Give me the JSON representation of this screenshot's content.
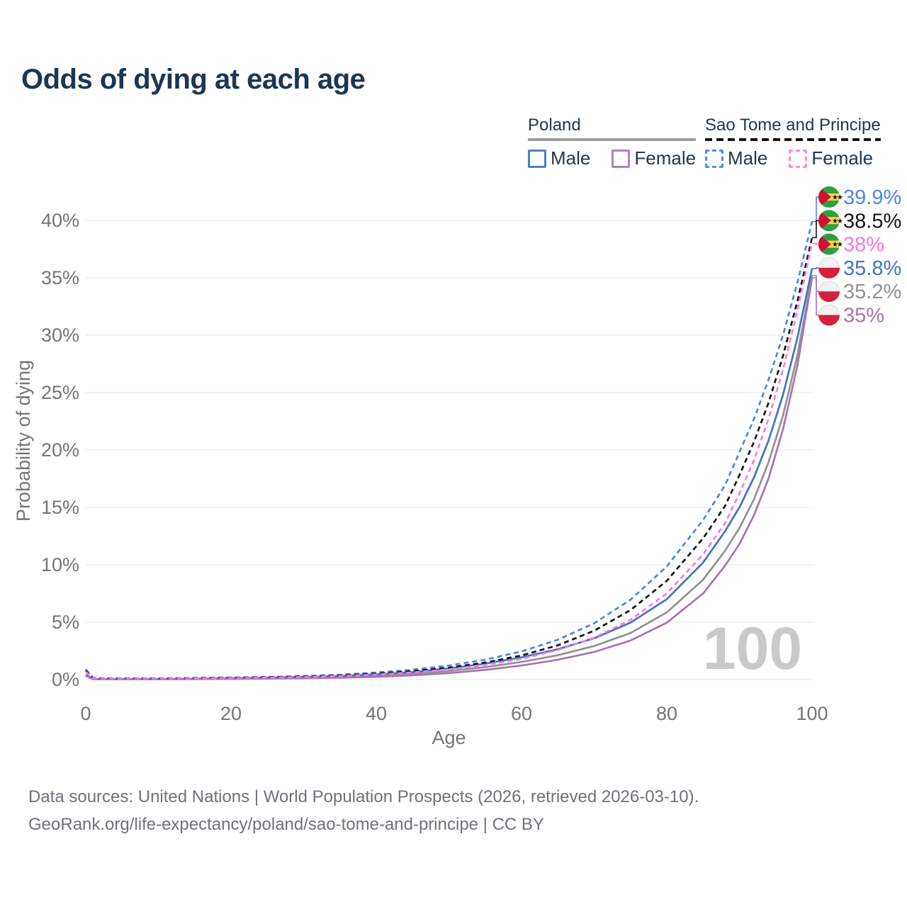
{
  "title": "Odds of dying at each age",
  "watermark": "100",
  "legend": {
    "groups": [
      {
        "label": "Poland",
        "underline_style": "solid",
        "underline_color": "#9e9e9e",
        "items": [
          {
            "label": "Male",
            "color": "#4f7fc2",
            "dashed": false
          },
          {
            "label": "Female",
            "color": "#b57fbe",
            "dashed": false
          }
        ]
      },
      {
        "label": "Sao Tome and Principe",
        "underline_style": "dashed",
        "underline_color": "#131313",
        "items": [
          {
            "label": "Male",
            "color": "#4a90f0",
            "dashed": true
          },
          {
            "label": "Female",
            "color": "#fb86ef",
            "dashed": true
          }
        ]
      }
    ]
  },
  "chart_data": {
    "type": "line",
    "title": "Odds of dying at each age",
    "xlabel": "Age",
    "ylabel": "Probability of dying",
    "xlim": [
      0,
      100
    ],
    "ylim": [
      0,
      41
    ],
    "grid": "horizontal",
    "legend_position": "top-right",
    "x_ticks": [
      {
        "value": 0,
        "label": "0"
      },
      {
        "value": 20,
        "label": "20"
      },
      {
        "value": 40,
        "label": "40"
      },
      {
        "value": 60,
        "label": "60"
      },
      {
        "value": 80,
        "label": "80"
      },
      {
        "value": 100,
        "label": "100"
      }
    ],
    "y_ticks": [
      {
        "value": 0,
        "label": "0%"
      },
      {
        "value": 5,
        "label": "5%"
      },
      {
        "value": 10,
        "label": "10%"
      },
      {
        "value": 15,
        "label": "15%"
      },
      {
        "value": 20,
        "label": "20%"
      },
      {
        "value": 25,
        "label": "25%"
      },
      {
        "value": 30,
        "label": "30%"
      },
      {
        "value": 35,
        "label": "35%"
      },
      {
        "value": 40,
        "label": "40%"
      }
    ],
    "x": [
      0,
      1,
      2,
      5,
      10,
      15,
      20,
      25,
      30,
      35,
      40,
      45,
      50,
      55,
      60,
      65,
      70,
      75,
      80,
      85,
      88,
      90,
      92,
      94,
      96,
      98,
      100
    ],
    "series": [
      {
        "name": "Sao Tome and Principe — Male",
        "country": "Sao Tome and Principe",
        "sex": "Male",
        "color": "#4a86e8",
        "dash": "7 5",
        "flag": "st",
        "end_label": "39.9%",
        "end_value": 39.9,
        "values": [
          0.9,
          0.15,
          0.1,
          0.1,
          0.1,
          0.14,
          0.18,
          0.22,
          0.3,
          0.42,
          0.61,
          0.86,
          1.22,
          1.73,
          2.45,
          3.47,
          4.9,
          6.95,
          9.85,
          13.9,
          16.9,
          19.8,
          22.7,
          26.1,
          30.0,
          34.6,
          39.9
        ]
      },
      {
        "name": "Sao Tome and Principe — Both sexes",
        "country": "Sao Tome and Principe",
        "sex": "Both",
        "color": "#151515",
        "dash": "7 5",
        "flag": "st",
        "end_label": "38.5%",
        "end_value": 38.5,
        "values": [
          0.78,
          0.13,
          0.09,
          0.09,
          0.085,
          0.12,
          0.155,
          0.195,
          0.26,
          0.36,
          0.52,
          0.73,
          1.04,
          1.48,
          2.1,
          2.98,
          4.25,
          6.05,
          8.6,
          12.3,
          15.1,
          17.8,
          20.7,
          24.1,
          28.2,
          33.0,
          38.5
        ]
      },
      {
        "name": "Sao Tome and Principe — Female",
        "country": "Sao Tome and Principe",
        "sex": "Female",
        "color": "#f878ea",
        "dash": "7 5",
        "flag": "st",
        "end_label": "38%",
        "end_value": 38.0,
        "values": [
          0.68,
          0.11,
          0.08,
          0.08,
          0.075,
          0.1,
          0.13,
          0.165,
          0.22,
          0.31,
          0.44,
          0.62,
          0.89,
          1.27,
          1.8,
          2.57,
          3.65,
          5.2,
          7.5,
          10.9,
          13.6,
          16.2,
          19.1,
          22.7,
          27.0,
          32.2,
          38.0
        ]
      },
      {
        "name": "Poland — Male",
        "country": "Poland",
        "sex": "Male",
        "color": "#4573c0",
        "dash": null,
        "flag": "pl",
        "end_label": "35.8%",
        "end_value": 35.8,
        "values": [
          0.42,
          0.04,
          0.03,
          0.03,
          0.035,
          0.06,
          0.12,
          0.17,
          0.22,
          0.31,
          0.45,
          0.66,
          0.97,
          1.38,
          1.93,
          2.64,
          3.6,
          4.95,
          7.0,
          10.2,
          12.9,
          15.0,
          17.6,
          20.8,
          24.8,
          29.8,
          35.8
        ]
      },
      {
        "name": "Poland — Both sexes",
        "country": "Poland",
        "sex": "Both",
        "color": "#929292",
        "dash": null,
        "flag": "pl",
        "end_label": "35.2%",
        "end_value": 35.2,
        "values": [
          0.38,
          0.035,
          0.025,
          0.025,
          0.03,
          0.05,
          0.09,
          0.13,
          0.17,
          0.24,
          0.35,
          0.51,
          0.75,
          1.08,
          1.53,
          2.12,
          2.92,
          4.05,
          5.85,
          8.7,
          11.2,
          13.2,
          15.7,
          18.9,
          23.0,
          28.3,
          35.2
        ]
      },
      {
        "name": "Poland — Female",
        "country": "Poland",
        "sex": "Female",
        "color": "#a873b2",
        "dash": null,
        "flag": "pl",
        "end_label": "35%",
        "end_value": 35.0,
        "values": [
          0.33,
          0.03,
          0.02,
          0.02,
          0.025,
          0.04,
          0.06,
          0.08,
          0.11,
          0.16,
          0.24,
          0.37,
          0.56,
          0.84,
          1.22,
          1.72,
          2.4,
          3.4,
          4.95,
          7.5,
          9.9,
          11.8,
          14.3,
          17.5,
          21.8,
          27.4,
          35.0
        ]
      }
    ],
    "flag_colors": {
      "st_green": "#2f9e41",
      "st_yellow": "#ffd84d",
      "st_red": "#d21034",
      "st_star": "#111111",
      "pl_white": "#f2f2f2",
      "pl_red": "#d6213e"
    }
  },
  "footer": {
    "line1": "Data sources: United Nations | World Population Prospects (2026, retrieved 2026-03-10).",
    "line2": "GeoRank.org/life-expectancy/poland/sao-tome-and-principe | CC BY"
  }
}
